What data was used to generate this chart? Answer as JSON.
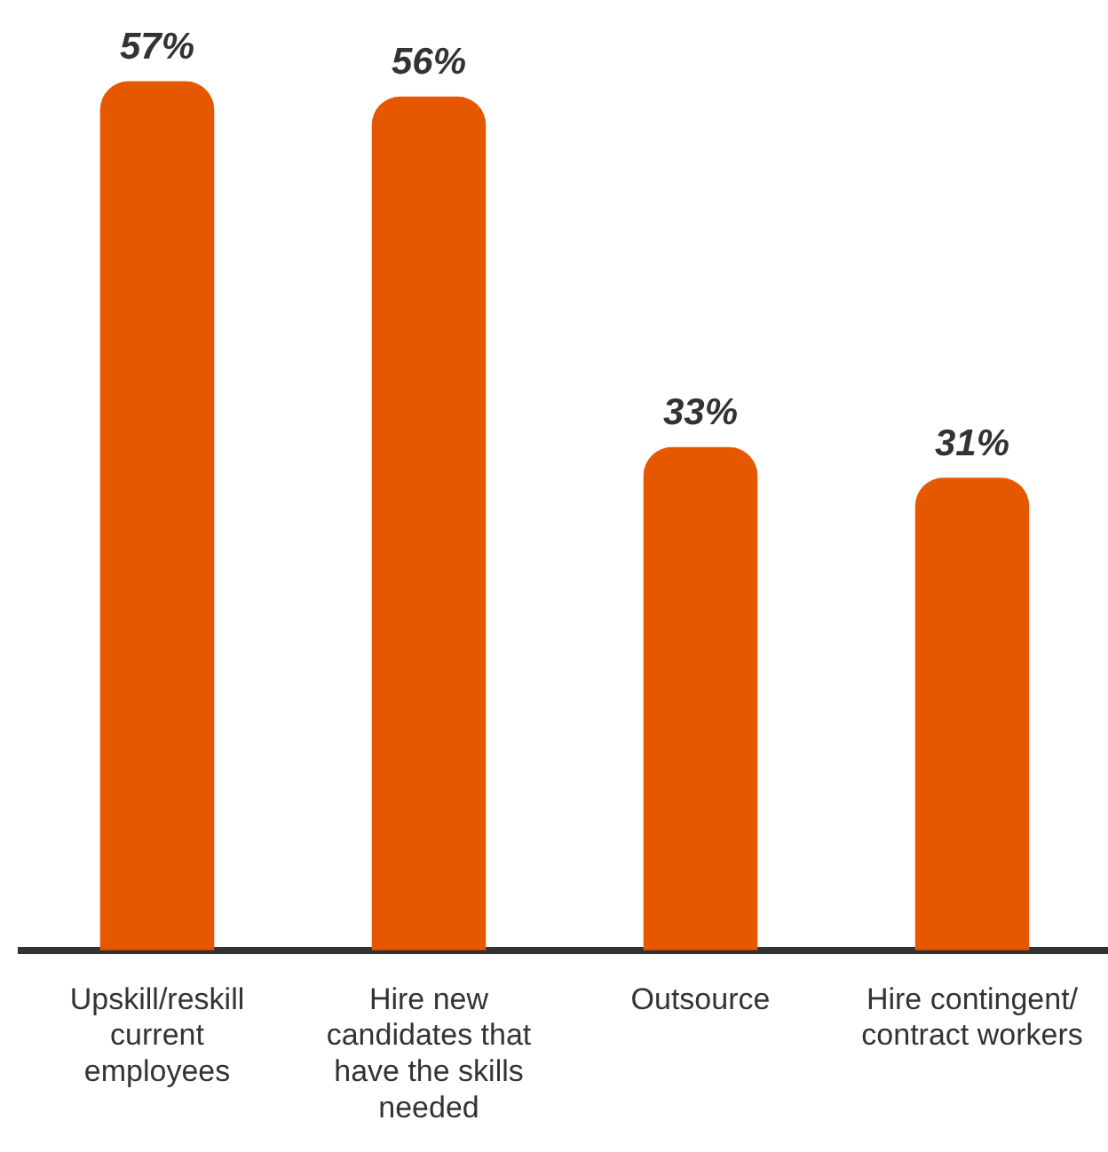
{
  "chart_data": {
    "type": "bar",
    "relative": false,
    "categories": [
      "Upskill/reskill current employees",
      "Hire new candidates that have the skills needed",
      "Outsource",
      "Hire contingent/ contract workers"
    ],
    "values": [
      57,
      56,
      33,
      31
    ],
    "value_labels": [
      "57%",
      "56%",
      "33%",
      "31%"
    ],
    "color": "#e65800"
  }
}
